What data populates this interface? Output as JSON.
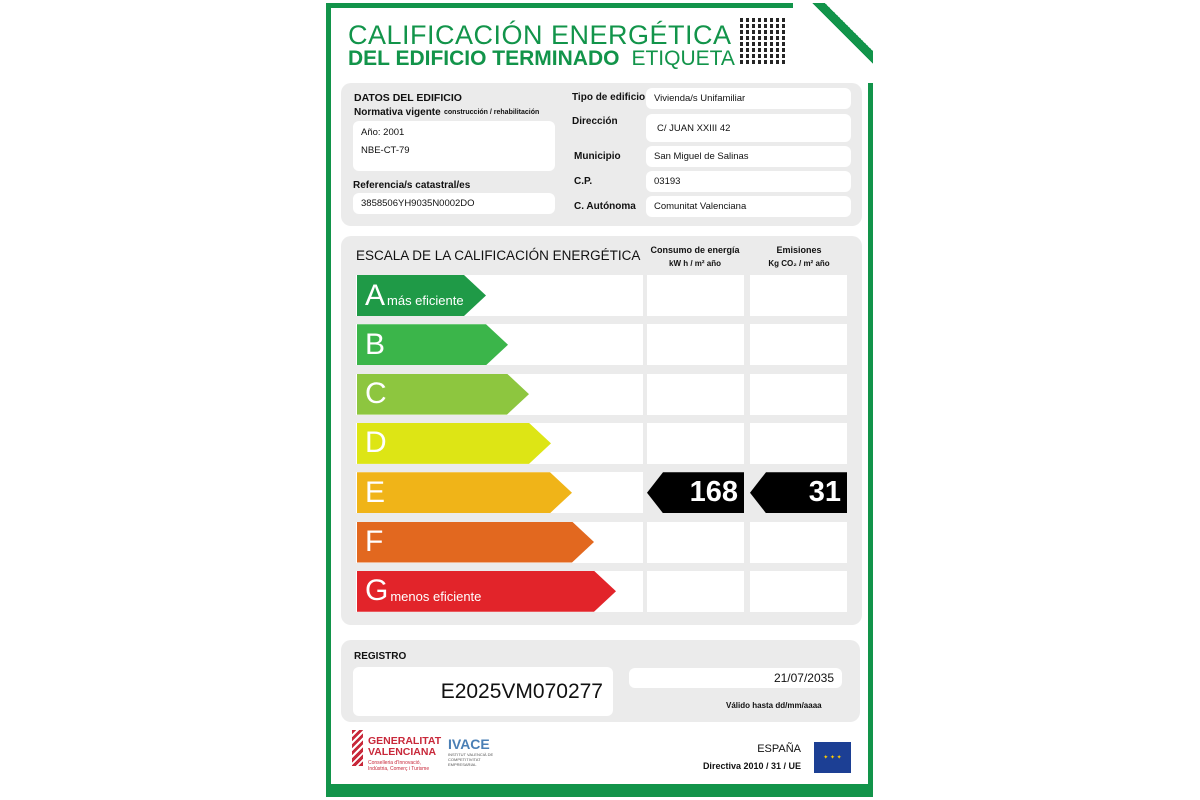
{
  "header": {
    "title_line1": "CALIFICACIÓN ENERGÉTICA",
    "title_line2": "DEL EDIFICIO  TERMINADO",
    "title_suffix": "ETIQUETA"
  },
  "building": {
    "section_title": "DATOS DEL EDIFICIO",
    "normativa_label": "Normativa vigente",
    "normativa_sub": "construcción / rehabilitación",
    "year": "Año: 2001",
    "norma": "NBE-CT-79",
    "ref_label": "Referencia/s catastral/es",
    "ref_value": "3858506YH9035N0002DO",
    "fields": [
      {
        "label": "Tipo de edificio",
        "value": "Vivienda/s Unifamiliar"
      },
      {
        "label": "Dirección",
        "value": "C/ JUAN XXIII 42"
      },
      {
        "label": "Municipio",
        "value": "San Miguel de Salinas"
      },
      {
        "label": "C.P.",
        "value": "03193"
      },
      {
        "label": "C. Autónoma",
        "value": "Comunitat Valenciana"
      }
    ]
  },
  "scale": {
    "title": "ESCALA DE LA CALIFICACIÓN ENERGÉTICA",
    "col1_title": "Consumo de energía",
    "col1_unit": "kW h / m² año",
    "col2_title": "Emisiones",
    "col2_unit": "Kg CO₂ / m² año",
    "classes": [
      {
        "letter": "A",
        "note": "más eficiente",
        "color": "#1f9a47"
      },
      {
        "letter": "B",
        "note": "",
        "color": "#3bb54a"
      },
      {
        "letter": "C",
        "note": "",
        "color": "#8dc63f"
      },
      {
        "letter": "D",
        "note": "",
        "color": "#dde515"
      },
      {
        "letter": "E",
        "note": "",
        "color": "#f0b418"
      },
      {
        "letter": "F",
        "note": "",
        "color": "#e2681f"
      },
      {
        "letter": "G",
        "note": "menos eficiente",
        "color": "#e2242a"
      }
    ],
    "rating_class": "E",
    "consumption": "168",
    "emissions": "31"
  },
  "registro": {
    "label": "REGISTRO",
    "number": "E2025VM070277",
    "valid_date": "21/07/2035",
    "valid_label": "Válido hasta dd/mm/aaaa"
  },
  "footer": {
    "gv_line1": "GENERALITAT",
    "gv_line2": "VALENCIANA",
    "gv_sub": "Conselleria d'Innovació, Indústria, Comerç i Turisme",
    "ivace": "IVACE",
    "ivace_sub": "INSTITUT VALENCIÀ DE COMPETITIVITAT EMPRESARIAL",
    "country": "ESPAÑA",
    "directive": "Directiva 2010 / 31 / UE"
  }
}
